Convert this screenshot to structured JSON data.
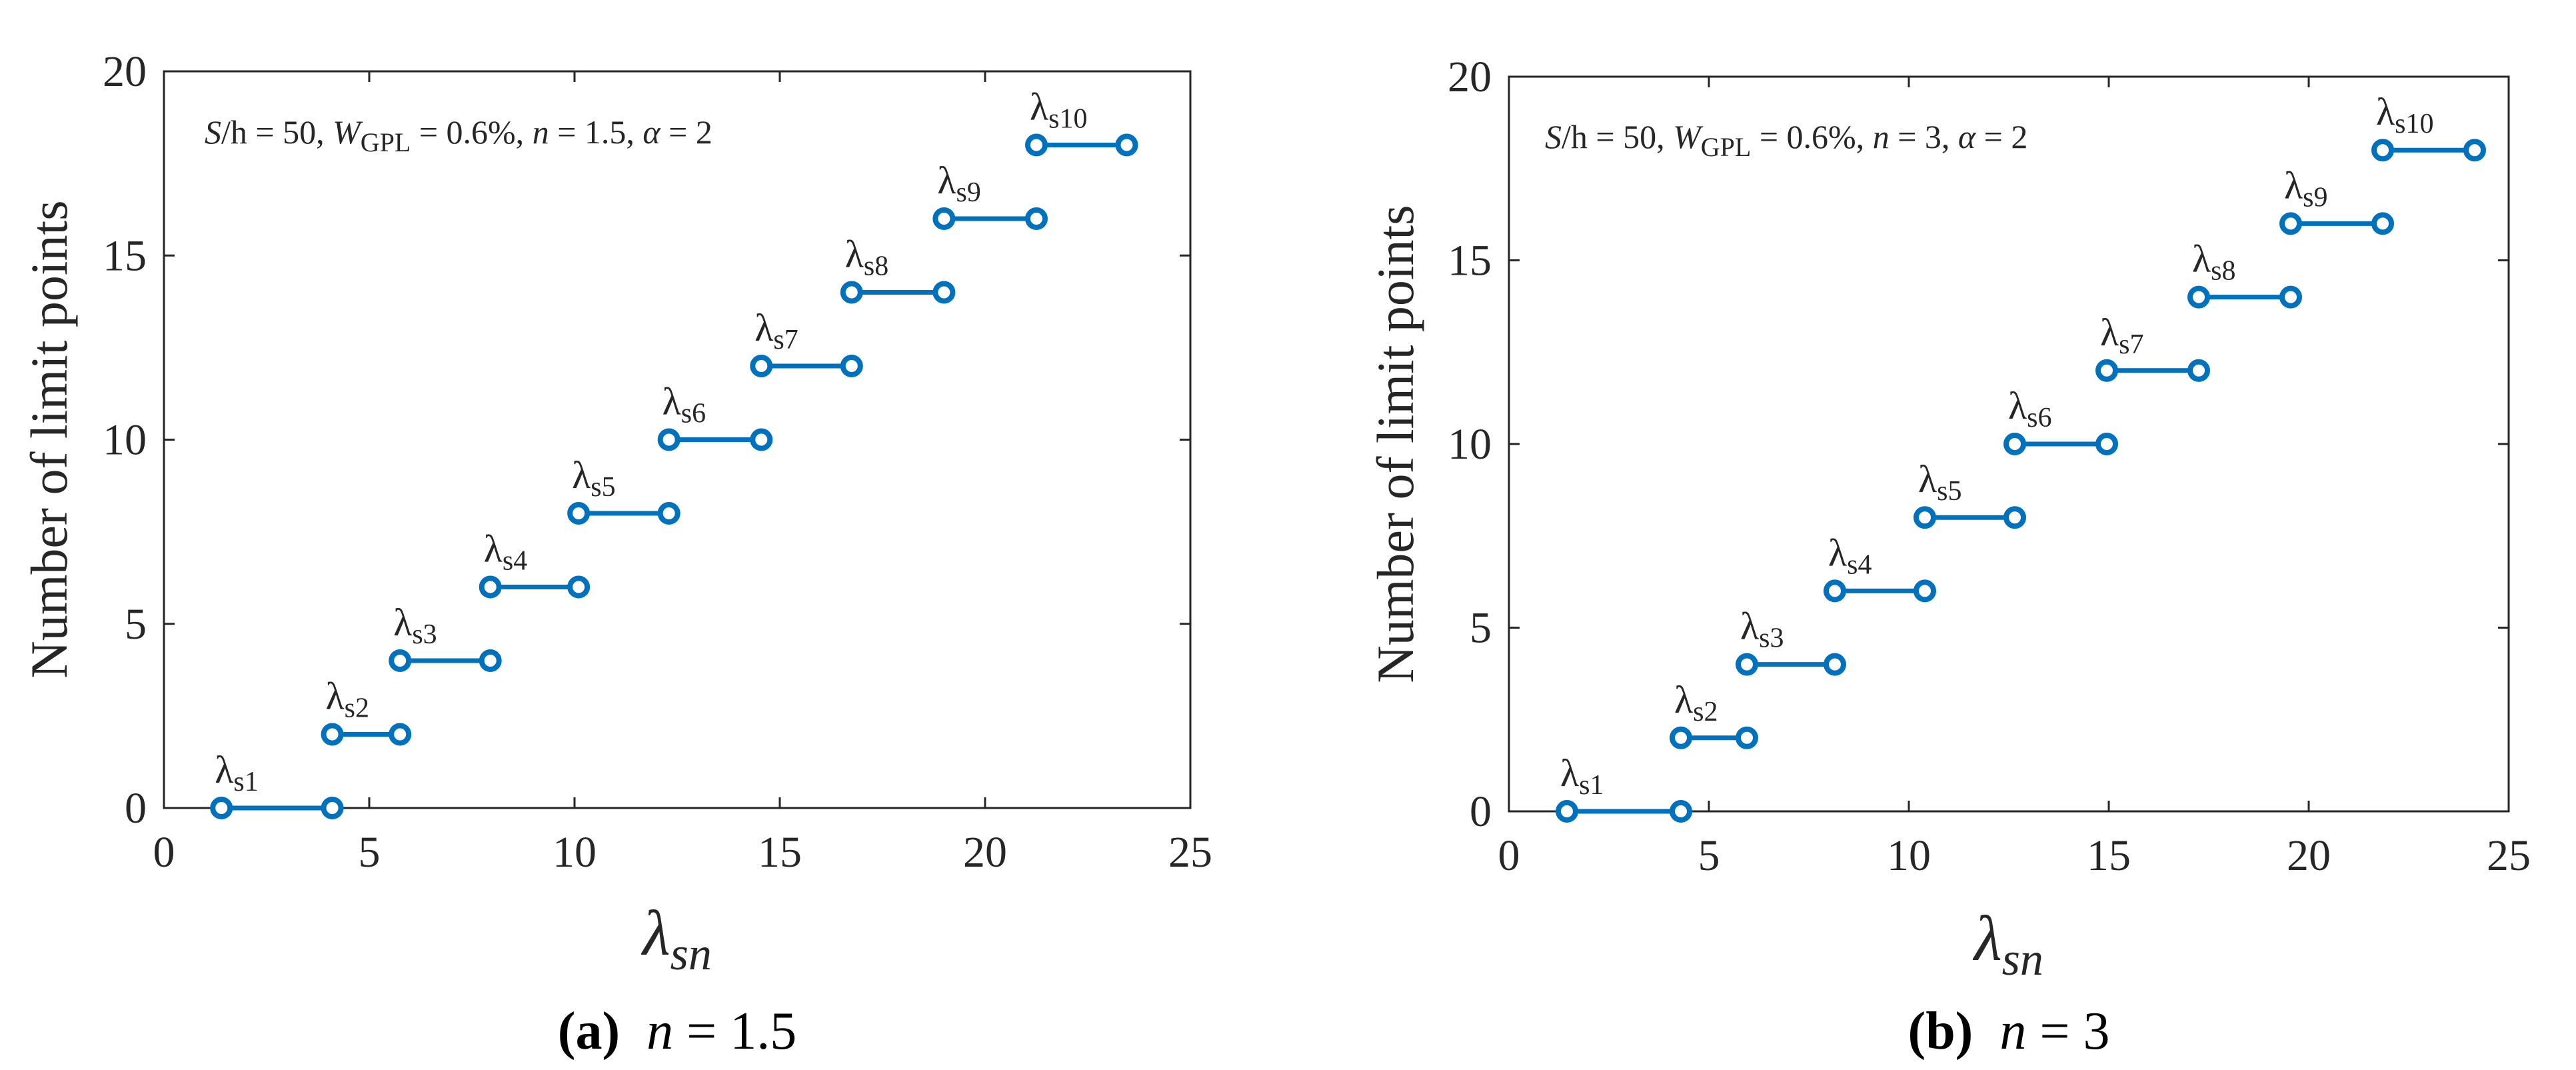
{
  "line_color": "#0072BD",
  "axis_color": "#262626",
  "chart_data": [
    {
      "type": "line",
      "panel": "a",
      "caption": {
        "letter": "(a)",
        "var": "n",
        "eq": " = 1.5"
      },
      "annotation": {
        "s": "S",
        "h_part": "/h = 50, ",
        "w": "W",
        "w_sub": "GPL",
        "w_val": " = 0.6%, ",
        "n": "n",
        "n_val": " = 1.5, ",
        "alpha": "α",
        "alpha_val": " = 2"
      },
      "xlabel": {
        "main": "λ",
        "sub": "sn"
      },
      "ylabel": "Number of limit points",
      "xlim": [
        0,
        25
      ],
      "ylim": [
        0,
        20
      ],
      "xticks": [
        0,
        5,
        10,
        15,
        20,
        25
      ],
      "yticks": [
        0,
        5,
        10,
        15,
        20
      ],
      "steps": [
        {
          "label": "λ",
          "sub": "s1",
          "x_start": 1.4,
          "x_end": 4.1,
          "y": 0
        },
        {
          "label": "λ",
          "sub": "s2",
          "x_start": 4.1,
          "x_end": 5.75,
          "y": 2
        },
        {
          "label": "λ",
          "sub": "s3",
          "x_start": 5.75,
          "x_end": 7.95,
          "y": 4
        },
        {
          "label": "λ",
          "sub": "s4",
          "x_start": 7.95,
          "x_end": 10.1,
          "y": 6
        },
        {
          "label": "λ",
          "sub": "s5",
          "x_start": 10.1,
          "x_end": 12.3,
          "y": 8
        },
        {
          "label": "λ",
          "sub": "s6",
          "x_start": 12.3,
          "x_end": 14.55,
          "y": 10
        },
        {
          "label": "λ",
          "sub": "s7",
          "x_start": 14.55,
          "x_end": 16.75,
          "y": 12
        },
        {
          "label": "λ",
          "sub": "s8",
          "x_start": 16.75,
          "x_end": 19.0,
          "y": 14
        },
        {
          "label": "λ",
          "sub": "s9",
          "x_start": 19.0,
          "x_end": 21.25,
          "y": 16
        },
        {
          "label": "λ",
          "sub": "s10",
          "x_start": 21.25,
          "x_end": 23.45,
          "y": 18
        }
      ]
    },
    {
      "type": "line",
      "panel": "b",
      "caption": {
        "letter": "(b)",
        "var": "n",
        "eq": " = 3"
      },
      "annotation": {
        "s": "S",
        "h_part": "/h = 50, ",
        "w": "W",
        "w_sub": "GPL",
        "w_val": " = 0.6%, ",
        "n": "n",
        "n_val": " = 3, ",
        "alpha": "α",
        "alpha_val": " = 2"
      },
      "xlabel": {
        "main": "λ",
        "sub": "sn"
      },
      "ylabel": "Number of limit points",
      "xlim": [
        0,
        25
      ],
      "ylim": [
        0,
        20
      ],
      "xticks": [
        0,
        5,
        10,
        15,
        20,
        25
      ],
      "yticks": [
        0,
        5,
        10,
        15,
        20
      ],
      "steps": [
        {
          "label": "λ",
          "sub": "s1",
          "x_start": 1.45,
          "x_end": 4.3,
          "y": 0
        },
        {
          "label": "λ",
          "sub": "s2",
          "x_start": 4.3,
          "x_end": 5.95,
          "y": 2
        },
        {
          "label": "λ",
          "sub": "s3",
          "x_start": 5.95,
          "x_end": 8.15,
          "y": 4
        },
        {
          "label": "λ",
          "sub": "s4",
          "x_start": 8.15,
          "x_end": 10.4,
          "y": 6
        },
        {
          "label": "λ",
          "sub": "s5",
          "x_start": 10.4,
          "x_end": 12.65,
          "y": 8
        },
        {
          "label": "λ",
          "sub": "s6",
          "x_start": 12.65,
          "x_end": 14.95,
          "y": 10
        },
        {
          "label": "λ",
          "sub": "s7",
          "x_start": 14.95,
          "x_end": 17.25,
          "y": 12
        },
        {
          "label": "λ",
          "sub": "s8",
          "x_start": 17.25,
          "x_end": 19.55,
          "y": 14
        },
        {
          "label": "λ",
          "sub": "s9",
          "x_start": 19.55,
          "x_end": 21.85,
          "y": 16
        },
        {
          "label": "λ",
          "sub": "s10",
          "x_start": 21.85,
          "x_end": 24.15,
          "y": 18
        }
      ]
    }
  ]
}
